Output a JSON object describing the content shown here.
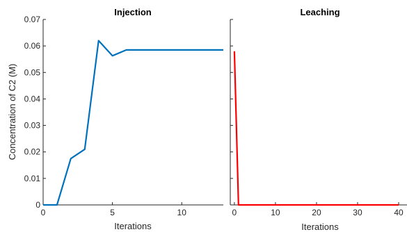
{
  "chart_data": [
    {
      "type": "line",
      "title": "Injection",
      "xlabel": "Iterations",
      "ylabel": "Concentration of C2 (M)",
      "xlim": [
        0,
        13
      ],
      "ylim": [
        0,
        0.07
      ],
      "xticks": [
        0,
        5,
        10
      ],
      "yticks": [
        0,
        0.01,
        0.02,
        0.03,
        0.04,
        0.05,
        0.06,
        0.07
      ],
      "xtick_labels": [
        "0",
        "5",
        "10"
      ],
      "ytick_labels": [
        "0",
        "0.01",
        "0.02",
        "0.03",
        "0.04",
        "0.05",
        "0.06",
        "0.07"
      ],
      "grid": false,
      "series": [
        {
          "color": "#0072BD",
          "x": [
            0,
            1,
            2,
            3,
            4,
            5,
            6,
            7,
            8,
            9,
            10,
            11,
            12,
            13
          ],
          "y": [
            0,
            0,
            0.0175,
            0.021,
            0.062,
            0.0563,
            0.0585,
            0.0585,
            0.0585,
            0.0585,
            0.0585,
            0.0585,
            0.0585,
            0.0585
          ]
        }
      ]
    },
    {
      "type": "line",
      "title": "Leaching",
      "xlabel": "Iterations",
      "ylabel": "",
      "xlim": [
        -1,
        40
      ],
      "ylim": [
        0,
        0.07
      ],
      "xticks": [
        0,
        10,
        20,
        30,
        40
      ],
      "xtick_labels": [
        "0",
        "10",
        "20",
        "30",
        "40"
      ],
      "grid": false,
      "series": [
        {
          "color": "#FF0000",
          "x": [
            0,
            1,
            40
          ],
          "y": [
            0.058,
            0,
            0
          ]
        }
      ]
    }
  ]
}
